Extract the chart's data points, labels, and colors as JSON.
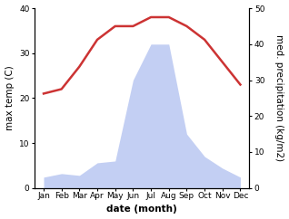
{
  "months": [
    "Jan",
    "Feb",
    "Mar",
    "Apr",
    "May",
    "Jun",
    "Jul",
    "Aug",
    "Sep",
    "Oct",
    "Nov",
    "Dec"
  ],
  "month_x": [
    1,
    2,
    3,
    4,
    5,
    6,
    7,
    8,
    9,
    10,
    11,
    12
  ],
  "temperature": [
    21,
    22,
    27,
    33,
    36,
    36,
    38,
    38,
    36,
    33,
    28,
    23
  ],
  "precipitation": [
    12,
    16,
    14,
    28,
    30,
    120,
    160,
    160,
    60,
    35,
    22,
    12
  ],
  "temp_color": "#cc3333",
  "precip_color": "#aabbee",
  "ylabel_left": "max temp (C)",
  "ylabel_right": "med. precipitation (kg/m2)",
  "xlabel": "date (month)",
  "ylim_left": [
    0,
    40
  ],
  "ylim_right": [
    0,
    200
  ],
  "yticks_left": [
    0,
    10,
    20,
    30,
    40
  ],
  "yticks_right": [
    0,
    10,
    20,
    30,
    40,
    50
  ],
  "ytick_right_labels": [
    "0",
    "10",
    "20",
    "30",
    "40",
    "50"
  ],
  "background_color": "#ffffff",
  "label_fontsize": 7.5,
  "tick_fontsize": 6.5,
  "line_width": 1.8
}
